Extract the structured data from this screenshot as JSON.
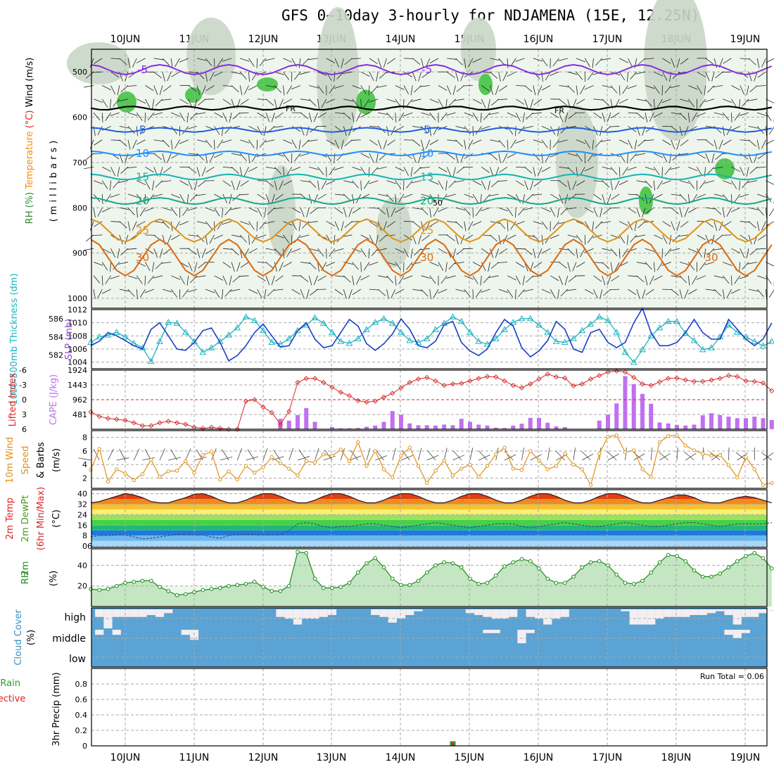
{
  "title": "GFS 0~10day 3-hourly for NDJAMENA (15E, 12.25N)",
  "chart_data": {
    "type": "meteogram",
    "time_axis": {
      "start": "09JUN 12UTC",
      "step_hours": 3,
      "n_steps": 80,
      "day_labels": [
        "10JUN",
        "11JUN",
        "12JUN",
        "13JUN",
        "14JUN",
        "15JUN",
        "16JUN",
        "17JUN",
        "18JUN",
        "19JUN"
      ]
    },
    "panels": {
      "profile": {
        "ylabel_parts": [
          {
            "text": "RH (%)",
            "color": "#2e8b2e"
          },
          {
            "text": "Temperature",
            "color": "#ff8c00"
          },
          {
            "text": "(°C)",
            "color": "#dd2222"
          },
          {
            "text": "Wind (m/s)",
            "color": "#000000"
          }
        ],
        "ylabel2": "(millibars)",
        "ylim": [
          1000,
          450
        ],
        "yticks": [
          500,
          600,
          700,
          800,
          900,
          1000
        ],
        "freezing_label": "FR",
        "rh_label": "50",
        "isotherms": [
          {
            "value": -5,
            "color": "#8a2be2",
            "base_level": 495,
            "amp": 18,
            "labels": [
              "-5",
              "-5"
            ]
          },
          {
            "value": 5,
            "color": "#1e5ee0",
            "base_level": 628,
            "amp": 8,
            "labels": [
              "5",
              "5"
            ]
          },
          {
            "value": 10,
            "color": "#1e90ff",
            "base_level": 680,
            "amp": 8,
            "labels": [
              "10",
              "10"
            ]
          },
          {
            "value": 15,
            "color": "#17b3b3",
            "base_level": 732,
            "amp": 10,
            "labels": [
              "15",
              "15"
            ]
          },
          {
            "value": 20,
            "color": "#18a88a",
            "base_level": 785,
            "amp": 12,
            "labels": [
              "20",
              "20"
            ]
          },
          {
            "value": 25,
            "color": "#e0921a",
            "base_level": 850,
            "amp": 25,
            "labels": [
              "25",
              "25"
            ]
          },
          {
            "value": 30,
            "color": "#d86a10",
            "base_level": 910,
            "amp": 40,
            "labels": [
              "30",
              "30",
              "30"
            ]
          }
        ]
      },
      "slp_thickness": {
        "ylabel_left": "1000-500mb Thickness (dm)",
        "ylabel_right": "SLP (mb)",
        "left_ticks": [
          582,
          584,
          586
        ],
        "left_range": [
          580.5,
          587
        ],
        "right_ticks": [
          1004,
          1006,
          1008,
          1010,
          1012
        ],
        "right_range": [
          1003,
          1012
        ],
        "thickness_color": "#1fb3c0",
        "slp_color": "#1a3fc4",
        "thickness": [
          583.4,
          584,
          584.2,
          584.5,
          584,
          583.3,
          582.8,
          581.3,
          583.5,
          585.6,
          585.5,
          584.5,
          583.5,
          582.3,
          582.8,
          583.5,
          584.2,
          585,
          586.2,
          585.8,
          584.7,
          583.4,
          583.2,
          583.8,
          584.7,
          585.3,
          586.1,
          585.5,
          584.5,
          583.5,
          583.3,
          583.8,
          584.8,
          585.6,
          586,
          585.5,
          584.5,
          583.6,
          583.4,
          583.8,
          584.8,
          585.5,
          586.2,
          585.7,
          584.5,
          583.5,
          583.2,
          583.8,
          584.8,
          585.6,
          586,
          586,
          585.3,
          584.5,
          583.5,
          583.4,
          583.8,
          584.7,
          585.4,
          586.2,
          585.8,
          584.5,
          582.3,
          581.2,
          582.6,
          584.1,
          585,
          585.7,
          585.7,
          584.4,
          583.6,
          582.6,
          582.8,
          584,
          585.3,
          584.5,
          584,
          583.5,
          583,
          583.5
        ],
        "slp": [
          1006.5,
          1007.2,
          1008.5,
          1008,
          1007.3,
          1006.5,
          1006,
          1009,
          1010,
          1008,
          1006,
          1005.8,
          1007,
          1008.8,
          1009.2,
          1007,
          1004.2,
          1005,
          1006.5,
          1008.5,
          1009.8,
          1008,
          1006.3,
          1006.5,
          1008.8,
          1010,
          1007.5,
          1006.2,
          1006.5,
          1008.5,
          1010.5,
          1009.5,
          1006.8,
          1005.8,
          1006.8,
          1008.3,
          1010.6,
          1009,
          1006.5,
          1006.2,
          1007.2,
          1009.7,
          1010.2,
          1007,
          1005.7,
          1005,
          1006,
          1008.5,
          1010.5,
          1009.5,
          1006.2,
          1004.8,
          1005.7,
          1007.3,
          1010.2,
          1009,
          1006,
          1005.5,
          1008.5,
          1009,
          1007,
          1006.2,
          1007,
          1010,
          1012.2,
          1008.5,
          1006.5,
          1006.5,
          1007,
          1008.5,
          1010.5,
          1008.5,
          1007.5,
          1007.5,
          1010.5,
          1009,
          1007.5,
          1006.5,
          1007.5,
          1010
        ]
      },
      "cape_li": {
        "ylabel_left": "Lifted Index",
        "ylabel_right": "CAPE (J/kg)",
        "li_ticks": [
          -6,
          -3,
          0,
          3,
          6
        ],
        "li_range": [
          -6,
          6
        ],
        "cape_ticks": [
          481,
          962,
          1443,
          1924
        ],
        "cape_range": [
          0,
          1924
        ],
        "li_color": "#d82828",
        "cape_color": "#c070f0",
        "lifted_index": [
          2.5,
          3.4,
          3.8,
          4,
          4.2,
          4.7,
          5.3,
          5.3,
          4.7,
          4.4,
          4.7,
          5,
          5.6,
          5.8,
          5.6,
          5.8,
          6,
          6,
          0.3,
          0,
          1.5,
          2.6,
          5,
          2.4,
          -3.5,
          -4.3,
          -4.3,
          -3.5,
          -2.5,
          -1.5,
          -0.8,
          0.2,
          0.5,
          0.3,
          -0.5,
          -1.3,
          -2.4,
          -3.5,
          -4.2,
          -4.5,
          -3.8,
          -2.9,
          -3.2,
          -3.3,
          -3.8,
          -4.3,
          -4.7,
          -4.6,
          -3.8,
          -2.9,
          -2.4,
          -3.2,
          -4.2,
          -5.2,
          -4.6,
          -4.4,
          -2.8,
          -3.2,
          -4.2,
          -4.9,
          -5.6,
          -5.8,
          -5.6,
          -4.5,
          -3.2,
          -2.9,
          -3.6,
          -4.3,
          -4.4,
          -4,
          -3.7,
          -3.7,
          -4,
          -4.3,
          -4.9,
          -4.7,
          -3.8,
          -3.7,
          -3.4,
          -1.8
        ],
        "cape": [
          0,
          0,
          0,
          0,
          0,
          0,
          0,
          0,
          0,
          0,
          0,
          0,
          0,
          0,
          0,
          0,
          0,
          0,
          0,
          0,
          0,
          0,
          340,
          280,
          460,
          690,
          240,
          0,
          70,
          30,
          30,
          40,
          80,
          120,
          240,
          590,
          470,
          190,
          130,
          130,
          120,
          150,
          130,
          340,
          240,
          150,
          120,
          50,
          40,
          120,
          180,
          370,
          370,
          210,
          90,
          70,
          0,
          0,
          0,
          280,
          470,
          840,
          1730,
          1470,
          1150,
          830,
          220,
          190,
          140,
          120,
          150,
          450,
          520,
          460,
          410,
          360,
          360,
          410,
          360,
          300,
          190,
          250,
          340,
          480,
          570,
          380,
          150,
          140,
          150,
          310
        ]
      },
      "wind10m": {
        "ylabel": "10m Wind Speed & Barbs (m/s)",
        "ylabel_parts": [
          {
            "text": "10m Wind",
            "color": "#e0921a"
          },
          {
            "text": "Speed",
            "color": "#e0921a"
          },
          {
            "text": "& Barbs",
            "color": "#000000"
          },
          {
            "text": "(m/s)",
            "color": "#000000"
          }
        ],
        "yticks": [
          2,
          4,
          6,
          8
        ],
        "ylim": [
          0.5,
          9
        ],
        "color": "#e0921a",
        "speed": [
          3.2,
          6.3,
          1.5,
          3.3,
          2.7,
          1.7,
          2.6,
          4.7,
          2.2,
          3,
          3.1,
          4.5,
          2.8,
          5.4,
          5.9,
          1.8,
          3,
          1.8,
          3.8,
          2.8,
          3.6,
          5.1,
          4.2,
          3.4,
          2.4,
          4.5,
          4.3,
          5.5,
          5.3,
          6.2,
          4.5,
          7.3,
          3.8,
          6,
          3.3,
          2.1,
          5.3,
          6.5,
          3.8,
          1.3,
          3.1,
          4.6,
          2.4,
          3.4,
          4,
          2.2,
          3.8,
          5.5,
          6.5,
          3.4,
          3.2,
          6,
          4.6,
          3.3,
          3.8,
          5.6,
          4,
          3.3,
          1,
          5.6,
          8.1,
          8.3,
          5.8,
          6.1,
          3.3,
          2.2,
          7.3,
          8.2,
          8.3,
          6.8,
          6.1,
          5.6,
          5.3,
          5.4,
          3.9,
          2.1,
          5.1,
          3.3,
          1,
          1.3,
          2.3,
          4.1,
          5.2
        ]
      },
      "temp2m": {
        "ylabel_parts": [
          {
            "text": "2m Temp",
            "color": "#d82828"
          },
          {
            "text": "2m DewPt",
            "color": "#4a9c1a"
          },
          {
            "text": "(6hr Min/Max)",
            "color": "#d82828"
          },
          {
            "text": "(°C)",
            "color": "#000000"
          }
        ],
        "yticks": [
          0,
          8,
          16,
          24,
          32,
          40
        ],
        "tick_label_bottom": "6",
        "ylim": [
          -1,
          43
        ],
        "temp": [
          33,
          34,
          36,
          38,
          40,
          39,
          37,
          34,
          33,
          33,
          35,
          37,
          39.5,
          40,
          38,
          35,
          33,
          33,
          35,
          38,
          40,
          40,
          38,
          35,
          33,
          33,
          35,
          38,
          40,
          40,
          38,
          35,
          33,
          33,
          35,
          38,
          40,
          40,
          38,
          35,
          33,
          33,
          35,
          38,
          40,
          40,
          38,
          35,
          33,
          33,
          35,
          38,
          40,
          40,
          38,
          35,
          33,
          33,
          35,
          38,
          40,
          40,
          38,
          35,
          33,
          33,
          35,
          37,
          39,
          39,
          37,
          34,
          33,
          33,
          35,
          37,
          38,
          37,
          35,
          33
        ],
        "dewpoint": [
          7,
          8,
          8,
          8.5,
          8.5,
          7,
          5.5,
          6,
          7,
          8,
          9,
          9,
          8.5,
          8.5,
          7,
          6,
          8,
          9,
          9,
          9,
          8.5,
          8.5,
          9,
          12,
          17,
          18,
          17,
          15,
          14,
          15,
          15,
          16,
          17,
          17,
          16,
          15,
          14,
          15,
          16,
          17,
          18,
          17,
          16,
          15,
          14,
          15,
          16,
          17,
          17,
          17,
          15,
          14,
          15,
          16,
          17,
          18,
          17,
          16,
          15,
          15,
          16,
          17,
          18,
          17,
          16,
          15,
          15,
          16,
          17,
          18,
          18,
          17,
          16,
          15,
          16,
          17,
          17,
          17,
          17,
          18
        ]
      },
      "rh2m": {
        "ylabel": "2m RH (%)",
        "yticks": [
          20,
          40
        ],
        "ylim": [
          0,
          56
        ],
        "color": "#1e8b1e",
        "values": [
          17,
          16,
          17,
          20,
          23,
          24,
          25,
          25,
          19,
          15,
          11,
          12,
          14,
          16,
          17,
          18,
          20,
          21,
          22,
          24,
          19,
          15,
          15,
          20,
          53,
          52,
          27,
          18,
          18,
          19,
          23,
          33,
          42,
          47,
          38,
          27,
          21,
          21,
          25,
          33,
          40,
          43,
          42,
          38,
          27,
          22,
          23,
          30,
          39,
          43,
          46,
          44,
          37,
          27,
          23,
          23,
          29,
          38,
          43,
          44,
          40,
          31,
          23,
          22,
          25,
          33,
          43,
          50,
          49,
          44,
          35,
          29,
          29,
          32,
          38,
          44,
          49,
          52,
          47,
          37,
          30,
          23,
          23,
          30,
          34,
          37,
          40,
          42
        ]
      },
      "cloud": {
        "ylabel": "Cloud Cover (%)",
        "categories": [
          "high",
          "middle",
          "low"
        ],
        "bg_color": "#5aa3d4",
        "clear_color": "#f2eef2",
        "high": [
          0,
          0.4,
          1,
          0.4,
          0.4,
          0.4,
          0.4,
          0.3,
          0.4,
          0.2,
          0,
          0,
          0,
          0,
          0,
          0,
          0,
          0,
          0,
          0,
          0,
          0,
          0.4,
          0.5,
          0.8,
          0.5,
          0.5,
          0.4,
          0.3,
          0,
          0,
          0,
          0,
          0.3,
          0.4,
          0.7,
          0.5,
          0.3,
          0.1,
          0,
          0,
          0,
          0,
          0,
          0.2,
          0.3,
          0.4,
          0.5,
          0.5,
          0.4,
          0,
          0.4,
          0.5,
          0.8,
          0.5,
          0.4,
          0,
          0,
          0,
          0,
          0,
          0,
          0.1,
          0.8,
          0.8,
          0.8,
          0.5,
          0.4,
          0.4,
          0.4,
          0.3,
          0.3,
          0.2,
          0.1,
          0.3,
          0.8,
          0.4,
          0.4,
          0.2,
          0.1,
          0.2,
          0.1
        ],
        "middle": [
          0,
          0.3,
          0,
          0.3,
          0,
          0,
          0,
          0,
          0,
          0,
          0,
          0.3,
          0.6,
          0,
          0,
          0,
          0,
          0,
          0,
          0,
          0,
          0,
          0,
          0,
          0,
          0,
          0,
          0,
          0,
          0,
          0,
          0,
          0,
          0,
          0,
          0,
          0,
          0,
          0,
          0,
          0,
          0,
          0,
          0,
          0,
          0,
          0.2,
          0.2,
          0,
          0,
          0.8,
          0.2,
          0,
          0,
          0,
          0,
          0,
          0,
          0,
          0,
          0,
          0,
          0,
          0,
          0,
          0,
          0,
          0,
          0,
          0,
          0,
          0,
          0,
          0,
          0.3,
          0.5,
          0.2,
          0,
          0,
          0,
          0,
          0,
          0
        ]
      },
      "precip": {
        "ylabel": "3hr Precip (mm)",
        "ylabel_left": "tal / Rain",
        "ylabel_conv": "Convective",
        "yticks": [
          0,
          0.2,
          0.4,
          0.6,
          0.8
        ],
        "ylim": [
          0,
          1
        ],
        "run_total_label": "Run Total = 0.06",
        "total": [
          {
            "index": 42,
            "value": 0.06
          }
        ]
      }
    }
  }
}
